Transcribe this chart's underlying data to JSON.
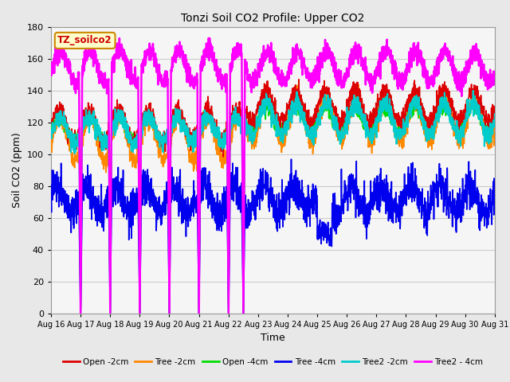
{
  "title": "Tonzi Soil CO2 Profile: Upper CO2",
  "xlabel": "Time",
  "ylabel": "Soil CO2 (ppm)",
  "ylim": [
    0,
    180
  ],
  "yticks": [
    0,
    20,
    40,
    60,
    80,
    100,
    120,
    140,
    160,
    180
  ],
  "n_days": 15,
  "xtick_labels": [
    "Aug 16",
    "Aug 17",
    "Aug 18",
    "Aug 19",
    "Aug 20",
    "Aug 21",
    "Aug 22",
    "Aug 23",
    "Aug 24",
    "Aug 25",
    "Aug 26",
    "Aug 27",
    "Aug 28",
    "Aug 29",
    "Aug 30",
    "Aug 31"
  ],
  "series": {
    "open_2cm": {
      "color": "#dd0000",
      "lw": 1.2,
      "label": "Open -2cm"
    },
    "tree_2cm": {
      "color": "#ff8800",
      "lw": 1.2,
      "label": "Tree -2cm"
    },
    "open_4cm": {
      "color": "#00dd00",
      "lw": 1.2,
      "label": "Open -4cm"
    },
    "tree_4cm": {
      "color": "#0000ee",
      "lw": 1.2,
      "label": "Tree -4cm"
    },
    "tree2_2cm": {
      "color": "#00cccc",
      "lw": 1.5,
      "label": "Tree2 -2cm"
    },
    "tree2_4cm": {
      "color": "#ff00ff",
      "lw": 1.8,
      "label": "Tree2 - 4cm"
    }
  },
  "label_box": {
    "text": "TZ_soilco2",
    "facecolor": "#ffffcc",
    "edgecolor": "#cc8800",
    "textcolor": "#cc0000"
  },
  "fig_bg": "#e8e8e8",
  "plot_bg": "#f5f5f5",
  "grid_color": "#cccccc"
}
